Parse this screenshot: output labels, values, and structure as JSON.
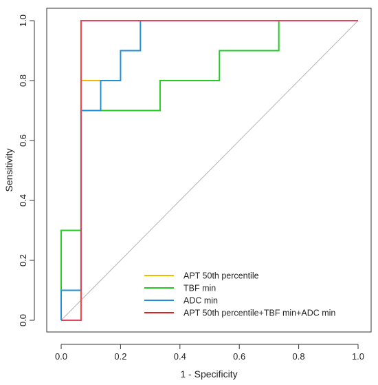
{
  "chart_data": {
    "type": "line",
    "title": "",
    "xlabel": "1 - Specificity",
    "ylabel": "Sensitivity",
    "xlim": [
      -0.04,
      1.04
    ],
    "ylim": [
      -0.04,
      1.04
    ],
    "xticks": [
      "0.0",
      "0.2",
      "0.4",
      "0.6",
      "0.8",
      "1.0"
    ],
    "yticks": [
      "0.0",
      "0.2",
      "0.4",
      "0.6",
      "0.8",
      "1.0"
    ],
    "grid": false,
    "legend_position": "bottom-right",
    "reference_line": {
      "x": [
        0,
        1
      ],
      "y": [
        0,
        1
      ],
      "color": "#b3b3b3"
    },
    "series": [
      {
        "name": "APT 50th percentile",
        "color": "#f5b800",
        "points": [
          [
            0,
            0
          ],
          [
            0.067,
            0
          ],
          [
            0.067,
            0.8
          ],
          [
            0.067,
            0.8
          ],
          [
            0.133,
            0.8
          ],
          [
            0.133,
            0.8
          ],
          [
            0.067,
            0.8
          ],
          [
            0.067,
            1.0
          ],
          [
            1.0,
            1.0
          ]
        ]
      },
      {
        "name": "TBF min",
        "color": "#22cc22",
        "points": [
          [
            0,
            0
          ],
          [
            0,
            0.3
          ],
          [
            0.067,
            0.3
          ],
          [
            0.067,
            0.7
          ],
          [
            0.333,
            0.7
          ],
          [
            0.333,
            0.8
          ],
          [
            0.533,
            0.8
          ],
          [
            0.533,
            0.9
          ],
          [
            0.733,
            0.9
          ],
          [
            0.733,
            1.0
          ],
          [
            1.0,
            1.0
          ]
        ]
      },
      {
        "name": "ADC min",
        "color": "#1f8fd6",
        "points": [
          [
            0,
            0
          ],
          [
            0,
            0.1
          ],
          [
            0.067,
            0.1
          ],
          [
            0.067,
            0.7
          ],
          [
            0.133,
            0.7
          ],
          [
            0.133,
            0.8
          ],
          [
            0.2,
            0.8
          ],
          [
            0.2,
            0.9
          ],
          [
            0.267,
            0.9
          ],
          [
            0.267,
            1.0
          ],
          [
            1.0,
            1.0
          ]
        ]
      },
      {
        "name": "APT 50th percentile+TBF min+ADC min",
        "color": "#e8415f",
        "legend_color": "#e02020",
        "points": [
          [
            0,
            0
          ],
          [
            0.067,
            0
          ],
          [
            0.067,
            1.0
          ],
          [
            1.0,
            1.0
          ]
        ]
      }
    ]
  }
}
